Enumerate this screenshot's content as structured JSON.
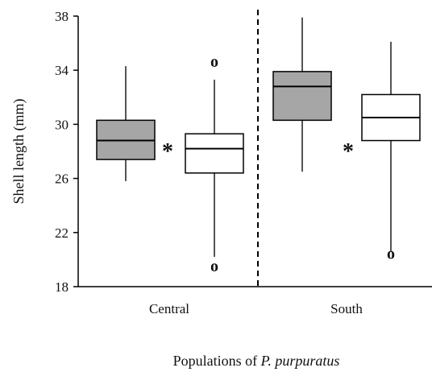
{
  "chart_data": {
    "type": "box",
    "ylabel": "Shell length (mm)",
    "xlabel": {
      "prefix": "Populations of ",
      "italic": "P. purpuratus"
    },
    "ylim": [
      18,
      38
    ],
    "yticks": [
      18,
      22,
      26,
      30,
      34,
      38
    ],
    "categories": [
      "Central",
      "South"
    ],
    "boxes": [
      {
        "category": "Central",
        "fill": "#a6a6a6",
        "whisker_low": 25.8,
        "q1": 27.4,
        "median": 28.8,
        "q3": 30.3,
        "whisker_high": 34.3,
        "outliers": []
      },
      {
        "category": "Central",
        "fill": "#ffffff",
        "whisker_low": 20.2,
        "q1": 26.4,
        "median": 28.2,
        "q3": 29.3,
        "whisker_high": 33.3,
        "outliers": [
          19.5,
          34.6
        ]
      },
      {
        "category": "South",
        "fill": "#a6a6a6",
        "whisker_low": 26.5,
        "q1": 30.3,
        "median": 32.8,
        "q3": 33.9,
        "whisker_high": 37.9,
        "outliers": []
      },
      {
        "category": "South",
        "fill": "#ffffff",
        "whisker_low": 20.6,
        "q1": 28.8,
        "median": 30.5,
        "q3": 32.2,
        "whisker_high": 36.1,
        "outliers": [
          20.4
        ]
      }
    ],
    "significance_markers": [
      {
        "category": "Central",
        "symbol": "*"
      },
      {
        "category": "South",
        "symbol": "*"
      }
    ],
    "outlier_symbol": "o",
    "divider": "dashed",
    "grid": false
  }
}
